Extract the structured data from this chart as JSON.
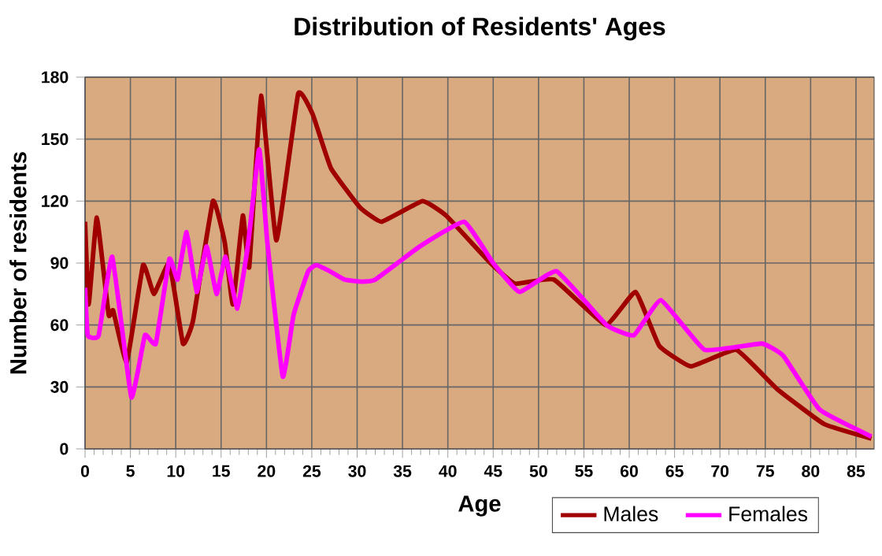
{
  "chart_data": {
    "type": "line",
    "title": "Distribution of Residents' Ages",
    "xlabel": "Age",
    "ylabel": "Number of residents",
    "xlim": [
      0,
      87
    ],
    "ylim": [
      0,
      180
    ],
    "xticks": [
      0,
      5,
      10,
      15,
      20,
      25,
      30,
      35,
      40,
      45,
      50,
      55,
      60,
      65,
      70,
      75,
      80,
      85
    ],
    "yticks": [
      0,
      30,
      60,
      90,
      120,
      150,
      180
    ],
    "grid": true,
    "legend": "bottom right",
    "marker": "none",
    "line_style": "solid",
    "series": [
      {
        "name": "Males",
        "color": "#a00000",
        "x": [
          0,
          0.4,
          1.3,
          2.6,
          3.1,
          4.6,
          6.4,
          7.6,
          9.3,
          10.8,
          11.9,
          14.1,
          15.4,
          16.3,
          17.4,
          18.1,
          19.4,
          21.1,
          23.5,
          25.1,
          27.1,
          30.3,
          32.7,
          37.2,
          39.8,
          44.7,
          47.4,
          51.7,
          57.4,
          60.7,
          63.3,
          66.8,
          71.8,
          76.3,
          81.5,
          86.7
        ],
        "values": [
          110,
          70,
          112,
          65,
          67,
          42,
          89,
          75,
          90,
          51,
          62,
          120,
          100,
          70,
          113,
          88,
          171,
          101,
          172,
          162,
          136,
          117,
          110,
          120,
          113,
          90,
          80,
          82,
          60,
          76,
          50,
          40,
          48,
          29,
          12,
          5
        ]
      },
      {
        "name": "Females",
        "color": "#ff00ff",
        "x": [
          0,
          0.3,
          1.5,
          3,
          5.1,
          6.6,
          7.8,
          9.3,
          10.2,
          11.2,
          12.3,
          13.4,
          14.5,
          15.5,
          16.8,
          18,
          19.2,
          20.1,
          21.8,
          23,
          24.6,
          25.5,
          27,
          28.6,
          30.5,
          32,
          36.9,
          41.8,
          45,
          47.9,
          52,
          57.5,
          60.5,
          63.5,
          68.3,
          74.6,
          77,
          81,
          86.7
        ],
        "values": [
          78,
          55,
          55,
          93,
          25,
          55,
          51,
          92,
          82,
          105,
          76,
          98,
          75,
          93,
          68,
          100,
          145,
          100,
          35,
          65,
          86,
          89,
          86,
          82,
          81,
          82,
          98,
          110,
          90,
          76,
          86,
          60,
          55,
          72,
          48,
          51,
          45,
          19,
          6
        ]
      }
    ]
  }
}
